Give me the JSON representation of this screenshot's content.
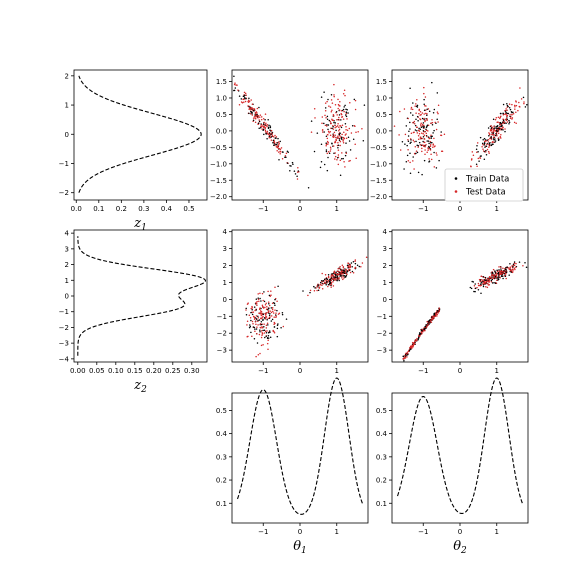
{
  "colors": {
    "train": "#000000",
    "test": "#d62728",
    "curve": "#000000"
  },
  "legend": {
    "train_label": "Train Data",
    "test_label": "Test Data",
    "placement": "lower-right",
    "in_panel": "scatter_z1_theta2"
  },
  "chart_data": [
    {
      "id": "density_z1",
      "type": "line",
      "orientation": "horizontal",
      "xlabel_main": "z",
      "xlabel_sub": "1",
      "xlim": [
        -0.01,
        0.58
      ],
      "ylim": [
        -2.25,
        2.2
      ],
      "xticks": [
        0.0,
        0.1,
        0.2,
        0.3,
        0.4,
        0.5
      ],
      "xtick_labels": [
        "0.0",
        "0.1",
        "0.2",
        "0.3",
        "0.4",
        "0.5"
      ],
      "yticks": [
        -2,
        -1,
        0,
        1,
        2
      ],
      "ytick_labels": [
        "−2",
        "−1",
        "0",
        "1",
        "2"
      ],
      "components": [
        {
          "weight": 1.0,
          "mean": 0.0,
          "sd": 0.72
        }
      ],
      "range": [
        -2.0,
        2.0
      ],
      "style": "dashed"
    },
    {
      "id": "density_z2",
      "type": "line",
      "orientation": "horizontal",
      "xlabel_main": "z",
      "xlabel_sub": "2",
      "xlim": [
        -0.01,
        0.34
      ],
      "ylim": [
        -4.2,
        4.2
      ],
      "xticks": [
        0.0,
        0.05,
        0.1,
        0.15,
        0.2,
        0.25,
        0.3
      ],
      "xtick_labels": [
        "0.00",
        "0.05",
        "0.10",
        "0.15",
        "0.20",
        "0.25",
        "0.30"
      ],
      "yticks": [
        -4,
        -3,
        -2,
        -1,
        0,
        1,
        2,
        3,
        4
      ],
      "ytick_labels": [
        "−4",
        "−3",
        "−2",
        "−1",
        "0",
        "1",
        "2",
        "3",
        "4"
      ],
      "components": [
        {
          "weight": 0.55,
          "mean": 1.05,
          "sd": 0.68
        },
        {
          "weight": 0.45,
          "mean": -0.65,
          "sd": 0.68
        }
      ],
      "range": [
        -3.8,
        3.8
      ],
      "style": "dashed"
    },
    {
      "id": "scatter_z1_theta1",
      "type": "scatter",
      "xlim": [
        -1.85,
        1.85
      ],
      "ylim": [
        -2.1,
        1.85
      ],
      "xticks": [
        -1,
        0,
        1
      ],
      "xtick_labels": [
        "−1",
        "0",
        "1"
      ],
      "yticks": [
        -2.0,
        -1.5,
        -1.0,
        -0.5,
        0.0,
        0.5,
        1.0,
        1.5
      ],
      "ytick_labels": [
        "−2.0",
        "−1.5",
        "−1.0",
        "−0.5",
        "0.0",
        "0.5",
        "1.0",
        "1.5"
      ],
      "clusters": [
        {
          "shape": "line",
          "x_center": -0.95,
          "x_spread": 0.1,
          "y_center": 0.1,
          "y_spread": 0.65,
          "slope": -1.55,
          "n": 260
        },
        {
          "shape": "blob",
          "x_center": 1.0,
          "x_spread": 0.25,
          "y_center": 0.05,
          "y_spread": 0.55,
          "n": 240
        }
      ]
    },
    {
      "id": "scatter_z1_theta2",
      "type": "scatter",
      "xlim": [
        -1.85,
        1.85
      ],
      "ylim": [
        -2.1,
        1.85
      ],
      "xticks": [
        -1,
        0,
        1
      ],
      "xtick_labels": [
        "−1",
        "0",
        "1"
      ],
      "yticks": [
        -2.0,
        -1.5,
        -1.0,
        -0.5,
        0.0,
        0.5,
        1.0,
        1.5
      ],
      "ytick_labels": [
        "−2.0",
        "−1.5",
        "−1.0",
        "−0.5",
        "0.0",
        "0.5",
        "1.0",
        "1.5"
      ],
      "clusters": [
        {
          "shape": "blob",
          "x_center": -1.0,
          "x_spread": 0.25,
          "y_center": 0.0,
          "y_spread": 0.6,
          "n": 240
        },
        {
          "shape": "line",
          "x_center": 1.0,
          "x_spread": 0.22,
          "y_center": 0.0,
          "y_spread": 0.5,
          "slope": 1.6,
          "n": 260
        }
      ]
    },
    {
      "id": "scatter_z2_theta1",
      "type": "scatter",
      "xlim": [
        -1.85,
        1.85
      ],
      "ylim": [
        -3.7,
        4.1
      ],
      "xticks": [
        -1,
        0,
        1
      ],
      "xtick_labels": [
        "−1",
        "0",
        "1"
      ],
      "yticks": [
        -3,
        -2,
        -1,
        0,
        1,
        2,
        3,
        4
      ],
      "ytick_labels": [
        "−3",
        "−2",
        "−1",
        "0",
        "1",
        "2",
        "3",
        "4"
      ],
      "clusters": [
        {
          "shape": "blob",
          "x_center": -1.0,
          "x_spread": 0.22,
          "y_center": -1.1,
          "y_spread": 0.75,
          "n": 240
        },
        {
          "shape": "line",
          "x_center": 1.0,
          "x_spread": 0.25,
          "y_center": 1.4,
          "y_spread": 0.35,
          "slope": 1.3,
          "n": 260
        }
      ]
    },
    {
      "id": "scatter_z2_theta2",
      "type": "scatter",
      "xlim": [
        -1.85,
        1.85
      ],
      "ylim": [
        -3.7,
        4.1
      ],
      "xticks": [
        -1,
        0,
        1
      ],
      "xtick_labels": [
        "−1",
        "0",
        "1"
      ],
      "yticks": [
        -3,
        -2,
        -1,
        0,
        1,
        2,
        3,
        4
      ],
      "ytick_labels": [
        "−3",
        "−2",
        "−1",
        "0",
        "1",
        "2",
        "3",
        "4"
      ],
      "clusters": [
        {
          "shape": "curve",
          "x_from": -1.55,
          "x_to": -0.55,
          "n": 240
        },
        {
          "shape": "line",
          "x_center": 1.0,
          "x_spread": 0.25,
          "y_center": 1.4,
          "y_spread": 0.35,
          "slope": 1.3,
          "n": 260
        }
      ]
    },
    {
      "id": "density_theta1",
      "type": "line",
      "xlabel_main": "θ",
      "xlabel_sub": "1",
      "xlim": [
        -1.85,
        1.85
      ],
      "ylim": [
        0.015,
        0.575
      ],
      "xticks": [
        -1,
        0,
        1
      ],
      "xtick_labels": [
        "−1",
        "0",
        "1"
      ],
      "yticks": [
        0.1,
        0.2,
        0.3,
        0.4,
        0.5
      ],
      "ytick_labels": [
        "0.1",
        "0.2",
        "0.3",
        "0.4",
        "0.5"
      ],
      "components": [
        {
          "weight": 0.5,
          "mean": -1.0,
          "sd": 0.36
        },
        {
          "weight": 0.5,
          "mean": 1.0,
          "sd": 0.33
        }
      ],
      "base": 0.035,
      "range": [
        -1.7,
        1.7
      ],
      "style": "dashed"
    },
    {
      "id": "density_theta2",
      "type": "line",
      "xlabel_main": "θ",
      "xlabel_sub": "2",
      "xlim": [
        -1.85,
        1.85
      ],
      "ylim": [
        0.015,
        0.575
      ],
      "xticks": [
        -1,
        0,
        1
      ],
      "xtick_labels": [
        "−1",
        "0",
        "1"
      ],
      "yticks": [
        0.1,
        0.2,
        0.3,
        0.4,
        0.5
      ],
      "ytick_labels": [
        "0.1",
        "0.2",
        "0.3",
        "0.4",
        "0.5"
      ],
      "components": [
        {
          "weight": 0.5,
          "mean": -1.0,
          "sd": 0.38
        },
        {
          "weight": 0.5,
          "mean": 1.0,
          "sd": 0.33
        }
      ],
      "base": 0.035,
      "range": [
        -1.7,
        1.7
      ],
      "style": "dashed"
    }
  ]
}
